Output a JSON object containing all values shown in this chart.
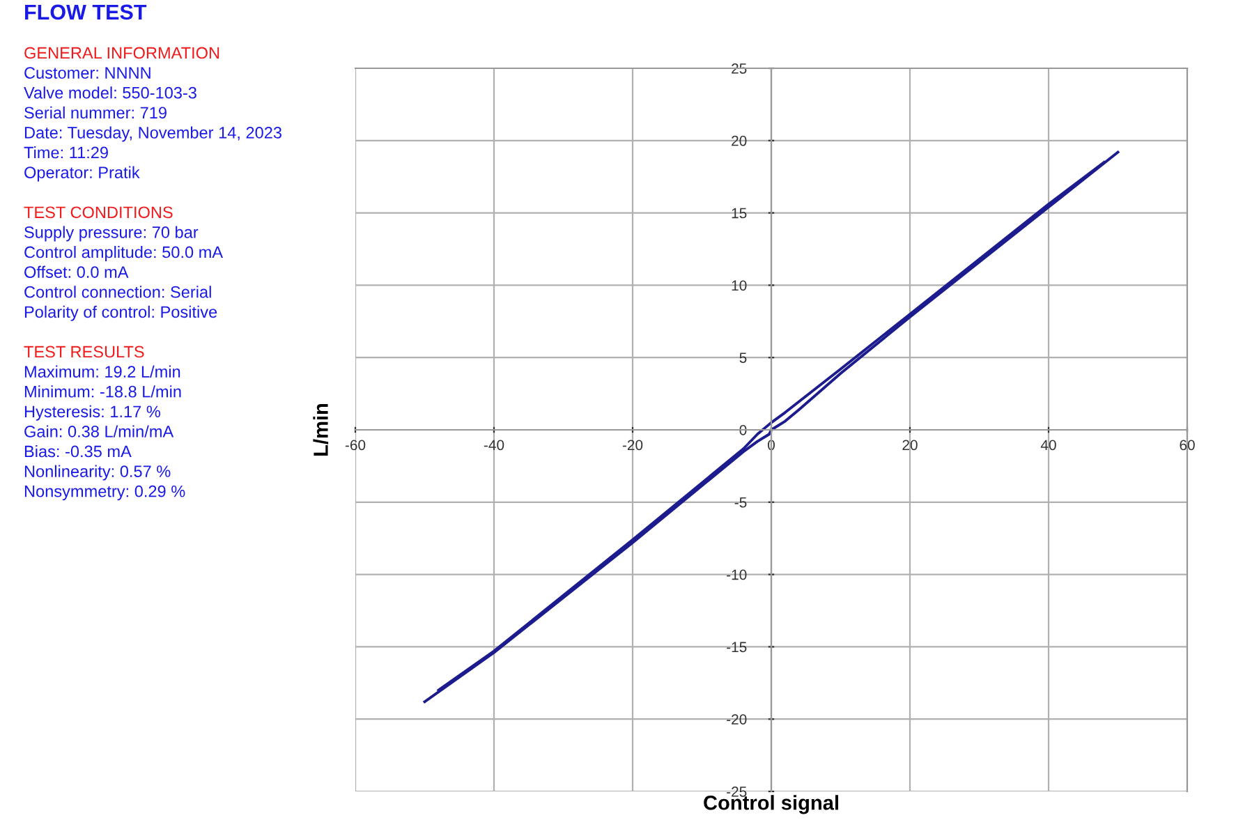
{
  "chart_data": {
    "type": "line",
    "title": "FLOW TEST",
    "xlabel": "Control signal",
    "ylabel": "L/min",
    "annotations": [
      [
        "GENERAL INFORMATION",
        "Customer: NNNN",
        "Valve model: 550-103-3",
        "Serial nummer: 719",
        "Date: Tuesday, November 14, 2023",
        "Time: 11:29",
        "Operator: Pratik"
      ],
      [
        "TEST CONDITIONS",
        "Supply pressure: 70 bar",
        "Control amplitude: 50.0 mA",
        "Offset: 0.0 mA",
        "Control connection: Serial",
        "Polarity of control: Positive"
      ],
      [
        "TEST RESULTS",
        "Maximum: 19.2 L/min",
        "Minimum: -18.8 L/min",
        "Hysteresis: 1.17 %",
        "Gain: 0.38 L/min/mA",
        "Bias: -0.35 mA",
        "Nonlinearity: 0.57 %",
        "Nonsymmetry: 0.29 %"
      ]
    ],
    "series": [
      {
        "color": "#1c1c8f",
        "x": [
          -50,
          -40,
          -20,
          -4,
          -2,
          -0.3,
          0,
          2,
          4,
          10,
          20,
          40,
          50
        ],
        "values": [
          -18.8,
          -15.4,
          -7.8,
          -1.5,
          -0.8,
          -0.3,
          0.0,
          0.6,
          1.4,
          3.9,
          7.8,
          15.4,
          19.2
        ]
      },
      {
        "color": "#1c1c8f",
        "x": [
          -48,
          -40,
          -20,
          -4,
          -2,
          0,
          2,
          10,
          20,
          40,
          48
        ],
        "values": [
          -18.0,
          -15.3,
          -7.6,
          -1.3,
          -0.3,
          0.5,
          1.2,
          4.2,
          8.0,
          15.6,
          18.5
        ]
      }
    ],
    "xlim": [
      -60,
      60
    ],
    "xticks": [
      -60,
      -40,
      -20,
      0,
      20,
      40,
      60
    ],
    "ylim": [
      -25,
      25
    ],
    "yticks": [
      -25,
      -20,
      -15,
      -10,
      -5,
      0,
      5,
      10,
      15,
      20,
      25
    ],
    "grid": true,
    "marker": "none",
    "line_style": "solid"
  }
}
